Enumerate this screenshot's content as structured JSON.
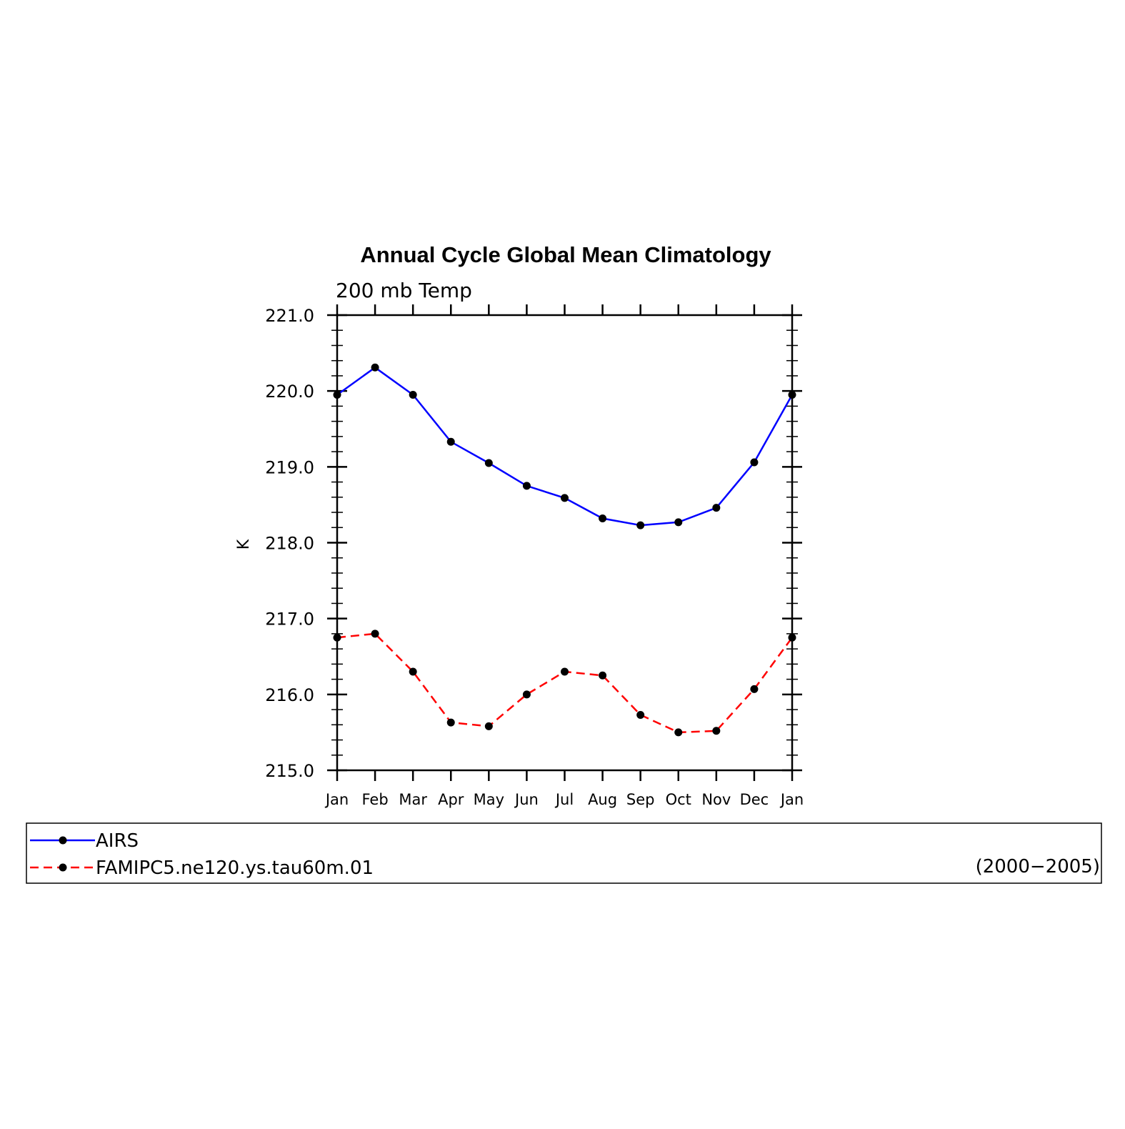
{
  "chart_data": {
    "type": "line",
    "title": "Annual Cycle Global Mean Climatology",
    "subtitle": "200 mb Temp",
    "xlabel": "",
    "ylabel": "K",
    "categories": [
      "Jan",
      "Feb",
      "Mar",
      "Apr",
      "May",
      "Jun",
      "Jul",
      "Aug",
      "Sep",
      "Oct",
      "Nov",
      "Dec",
      "Jan"
    ],
    "yticks": [
      "215.0",
      "216.0",
      "217.0",
      "218.0",
      "219.0",
      "220.0",
      "221.0"
    ],
    "ylim": [
      215.0,
      221.0
    ],
    "grid": false,
    "legend_position": "bottom",
    "series": [
      {
        "name": "AIRS",
        "color": "#0000ff",
        "dash": "solid",
        "marker": "filled-circle",
        "values": [
          219.95,
          220.31,
          219.95,
          219.33,
          219.05,
          218.75,
          218.59,
          218.32,
          218.23,
          218.27,
          218.46,
          219.06,
          219.95
        ]
      },
      {
        "name": "FAMIPC5.ne120.ys.tau60m.01",
        "color": "#ff0000",
        "dash": "dashed",
        "marker": "filled-circle",
        "values": [
          216.75,
          216.8,
          216.3,
          215.63,
          215.58,
          216.0,
          216.3,
          216.25,
          215.73,
          215.5,
          215.52,
          216.07,
          216.75
        ]
      }
    ],
    "legend_note": "(2000−2005)"
  }
}
